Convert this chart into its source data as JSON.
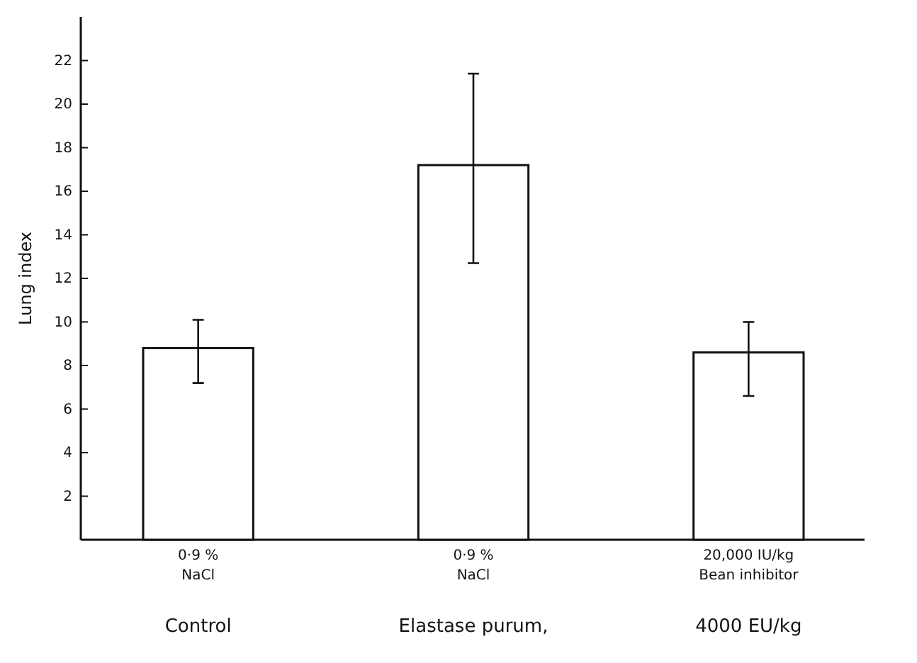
{
  "chart_data": {
    "type": "bar",
    "ylabel": "Lung index",
    "categories": [
      "0·9 %\nNaCl",
      "0·9 %\nNaCl",
      "20,000 IU/kg\nBean inhibitor"
    ],
    "values": [
      8.8,
      17.2,
      8.6
    ],
    "errors": [
      [
        7.2,
        10.1
      ],
      [
        12.7,
        21.4
      ],
      [
        6.6,
        10.0
      ]
    ],
    "color": "#ffffff",
    "ylim": [
      0,
      24
    ],
    "yticks": [
      2,
      4,
      6,
      8,
      10,
      12,
      14,
      16,
      18,
      20,
      22
    ],
    "grid": false,
    "annotations": [
      "Control",
      "Elastase purum,",
      "4000 EU/kg"
    ]
  }
}
